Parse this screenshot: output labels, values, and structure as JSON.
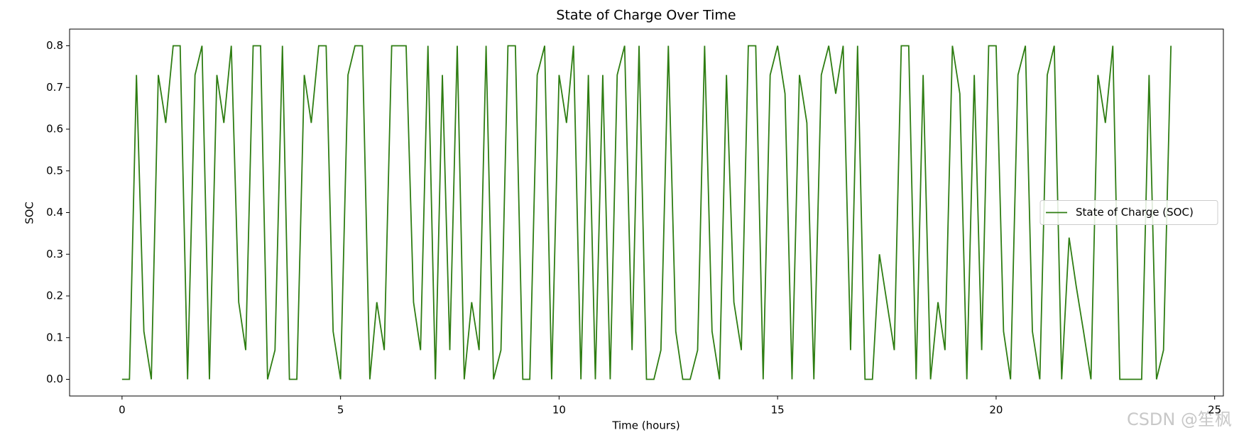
{
  "chart_data": {
    "type": "line",
    "title": "State of Charge Over Time",
    "x_label": "Time (hours)",
    "y_label": "SOC",
    "x": [
      0,
      0.17,
      0.33,
      0.5,
      0.67,
      0.83,
      1,
      1.17,
      1.33,
      1.5,
      1.67,
      1.83,
      2,
      2.17,
      2.33,
      2.5,
      2.67,
      2.83,
      3,
      3.17,
      3.33,
      3.5,
      3.67,
      3.83,
      4,
      4.17,
      4.33,
      4.5,
      4.67,
      4.83,
      5,
      5.17,
      5.33,
      5.5,
      5.67,
      5.83,
      6,
      6.17,
      6.33,
      6.5,
      6.67,
      6.83,
      7,
      7.17,
      7.33,
      7.5,
      7.67,
      7.83,
      8,
      8.17,
      8.33,
      8.5,
      8.67,
      8.83,
      9,
      9.17,
      9.33,
      9.5,
      9.67,
      9.83,
      10,
      10.17,
      10.33,
      10.5,
      10.67,
      10.83,
      11,
      11.17,
      11.33,
      11.5,
      11.67,
      11.83,
      12,
      12.17,
      12.33,
      12.5,
      12.67,
      12.83,
      13,
      13.17,
      13.33,
      13.5,
      13.67,
      13.83,
      14,
      14.17,
      14.33,
      14.5,
      14.67,
      14.83,
      15,
      15.17,
      15.33,
      15.5,
      15.67,
      15.83,
      16,
      16.17,
      16.33,
      16.5,
      16.67,
      16.83,
      17,
      17.17,
      17.33,
      17.5,
      17.67,
      17.83,
      18,
      18.17,
      18.33,
      18.5,
      18.67,
      18.83,
      19,
      19.17,
      19.33,
      19.5,
      19.67,
      19.83,
      20,
      20.17,
      20.33,
      20.5,
      20.67,
      20.83,
      21,
      21.17,
      21.33,
      21.5,
      21.67,
      21.83,
      22,
      22.17,
      22.33,
      22.5,
      22.67,
      22.83,
      23,
      23.17,
      23.33,
      23.5,
      23.67,
      23.83,
      24
    ],
    "series": [
      {
        "name": "State of Charge (SOC)",
        "color": "#2e7d12",
        "values": [
          0,
          0,
          0.73,
          0.115,
          0,
          0.73,
          0.615,
          0.8,
          0.8,
          0,
          0.73,
          0.8,
          0,
          0.73,
          0.615,
          0.8,
          0.185,
          0.07,
          0.8,
          0.8,
          0,
          0.07,
          0.8,
          0,
          0,
          0.73,
          0.615,
          0.8,
          0.8,
          0.115,
          0,
          0.73,
          0.8,
          0.8,
          0,
          0.185,
          0.07,
          0.8,
          0.8,
          0.8,
          0.185,
          0.07,
          0.8,
          0,
          0.73,
          0.07,
          0.8,
          0,
          0.185,
          0.07,
          0.8,
          0,
          0.07,
          0.8,
          0.8,
          0,
          0,
          0.73,
          0.8,
          0,
          0.73,
          0.615,
          0.8,
          0,
          0.73,
          0,
          0.73,
          0,
          0.73,
          0.8,
          0.07,
          0.8,
          0,
          0,
          0.07,
          0.8,
          0.115,
          0,
          0,
          0.07,
          0.8,
          0.115,
          0,
          0.73,
          0.185,
          0.07,
          0.8,
          0.8,
          0,
          0.73,
          0.8,
          0.685,
          0,
          0.73,
          0.615,
          0,
          0.73,
          0.8,
          0.685,
          0.8,
          0.07,
          0.8,
          0,
          0,
          0.3,
          0.185,
          0.07,
          0.8,
          0.8,
          0,
          0.73,
          0,
          0.185,
          0.07,
          0.8,
          0.685,
          0,
          0.73,
          0.07,
          0.8,
          0.8,
          0.115,
          0,
          0.73,
          0.8,
          0.115,
          0,
          0.73,
          0.8,
          0,
          0.34,
          0.225,
          0.115,
          0,
          0.73,
          0.615,
          0.8,
          0,
          0,
          0,
          0,
          0.73,
          0,
          0.07,
          0.8
        ]
      }
    ],
    "xlim": [
      -1.2,
      25.2
    ],
    "xticks": [
      0,
      5,
      10,
      15,
      20,
      25
    ],
    "ylim": [
      -0.04,
      0.84
    ],
    "yticks": [
      {
        "value": 0,
        "label": "0.0"
      },
      0.1,
      0.2,
      0.3,
      0.4,
      0.5,
      0.6,
      0.7,
      0.8
    ],
    "legend": "center right",
    "watermark": "CSDN @笙枫"
  }
}
